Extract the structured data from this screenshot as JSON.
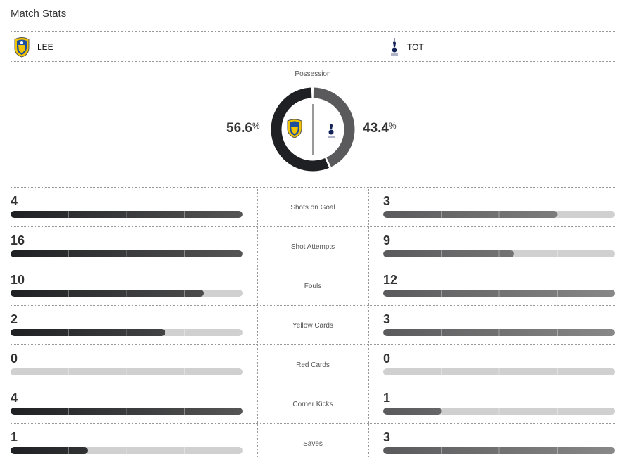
{
  "title": "Match Stats",
  "home": {
    "abbr": "LEE",
    "possession": "56.6",
    "color": "#1f2023",
    "crest_colors": [
      "#f2c300",
      "#1d4f9e"
    ]
  },
  "away": {
    "abbr": "TOT",
    "possession": "43.4",
    "color": "#5a5a5c",
    "crest_colors": [
      "#132257"
    ]
  },
  "possession": {
    "label": "Possession",
    "home_value": 56.6,
    "away_value": 43.4,
    "unit": "%"
  },
  "stats": [
    {
      "name": "Shots on Goal",
      "home": "4",
      "away": "3"
    },
    {
      "name": "Shot Attempts",
      "home": "16",
      "away": "9"
    },
    {
      "name": "Fouls",
      "home": "10",
      "away": "12"
    },
    {
      "name": "Yellow Cards",
      "home": "2",
      "away": "3"
    },
    {
      "name": "Red Cards",
      "home": "0",
      "away": "0"
    },
    {
      "name": "Corner Kicks",
      "home": "4",
      "away": "1"
    },
    {
      "name": "Saves",
      "home": "1",
      "away": "3"
    }
  ]
}
